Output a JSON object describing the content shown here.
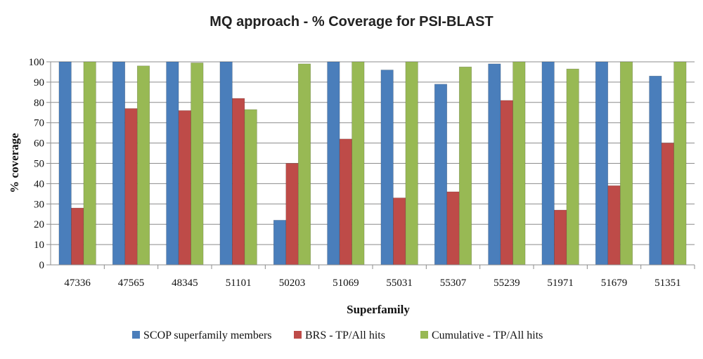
{
  "chart_data": {
    "type": "bar",
    "title": "MQ approach - % Coverage for PSI-BLAST",
    "xlabel": "Superfamily",
    "ylabel": "% coverage",
    "ylim": [
      0,
      100
    ],
    "yticks": [
      "0",
      "10",
      "20",
      "30",
      "40",
      "50",
      "60",
      "70",
      "80",
      "90",
      "100"
    ],
    "grid": true,
    "legend_position": "bottom",
    "categories": [
      "47336",
      "47565",
      "48345",
      "51101",
      "50203",
      "51069",
      "55031",
      "55307",
      "55239",
      "51971",
      "51679",
      "51351"
    ],
    "series": [
      {
        "name": "SCOP superfamily members",
        "color": "#4a7ebb",
        "values": [
          100,
          100,
          100,
          100,
          22,
          100,
          96,
          89,
          99,
          100,
          100,
          93
        ]
      },
      {
        "name": "BRS - TP/All hits",
        "color": "#be4b48",
        "values": [
          28,
          77,
          76,
          82,
          50,
          62,
          33,
          36,
          81,
          27,
          39,
          60
        ]
      },
      {
        "name": "Cumulative - TP/All hits",
        "color": "#98b954",
        "values": [
          100,
          98,
          99.5,
          76.5,
          99,
          100,
          100,
          97.5,
          100,
          96.5,
          100,
          100
        ]
      }
    ]
  }
}
